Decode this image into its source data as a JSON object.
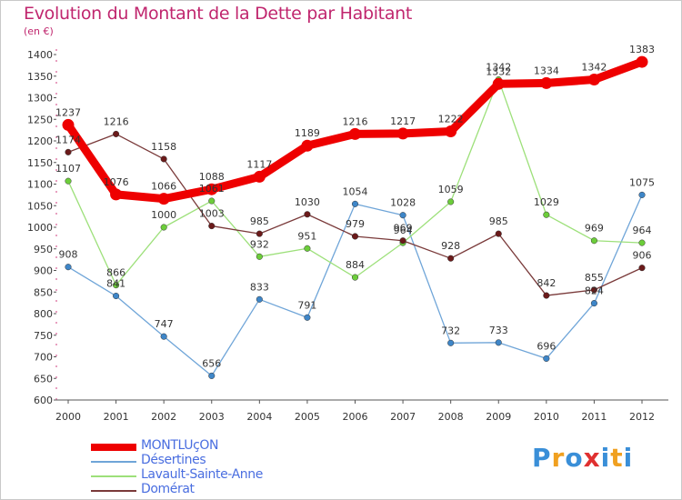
{
  "chart_data": {
    "type": "line",
    "title": "Evolution du Montant de la Dette par Habitant",
    "subtitle": "(en €)",
    "xlabel": "",
    "ylabel": "",
    "x": [
      "2000",
      "2001",
      "2002",
      "2003",
      "2004",
      "2005",
      "2006",
      "2007",
      "2008",
      "2009",
      "2010",
      "2011",
      "2012"
    ],
    "ylim": [
      600,
      1400
    ],
    "yticks": [
      600,
      650,
      700,
      750,
      800,
      850,
      900,
      950,
      1000,
      1050,
      1100,
      1150,
      1200,
      1250,
      1300,
      1350,
      1400
    ],
    "grid": false,
    "legend_position": "bottom-left",
    "series": [
      {
        "name": "MONTLUçON",
        "color": "#ee0000",
        "marker": "#ee0000",
        "thick": true,
        "values": [
          1237,
          1076,
          1066,
          1088,
          1117,
          1189,
          1216,
          1217,
          1222,
          1332,
          1334,
          1342,
          1383
        ]
      },
      {
        "name": "Désertines",
        "color": "#6fa5d8",
        "marker": "#3e86c8",
        "thick": false,
        "values": [
          908,
          841,
          747,
          656,
          833,
          791,
          1054,
          1028,
          732,
          733,
          696,
          824,
          1075
        ]
      },
      {
        "name": "Lavault-Sainte-Anne",
        "color": "#9de07a",
        "marker": "#6ccd3a",
        "thick": false,
        "values": [
          1107,
          866,
          1000,
          1061,
          932,
          951,
          884,
          964,
          1059,
          1342,
          1029,
          969,
          964
        ]
      },
      {
        "name": "Domérat",
        "color": "#7a3a3a",
        "marker": "#6b1a1a",
        "thick": false,
        "values": [
          1174,
          1216,
          1158,
          1003,
          985,
          1030,
          979,
          969,
          928,
          985,
          842,
          855,
          906
        ]
      }
    ]
  },
  "logo": {
    "text": "Proxiti",
    "letters": [
      "P",
      "r",
      "o",
      "x",
      "i",
      "t",
      "i"
    ],
    "colors": [
      "#3a8fd8",
      "#f0a020",
      "#3a8fd8",
      "#e03030",
      "#3a8fd8",
      "#f0a020",
      "#3a8fd8"
    ]
  }
}
